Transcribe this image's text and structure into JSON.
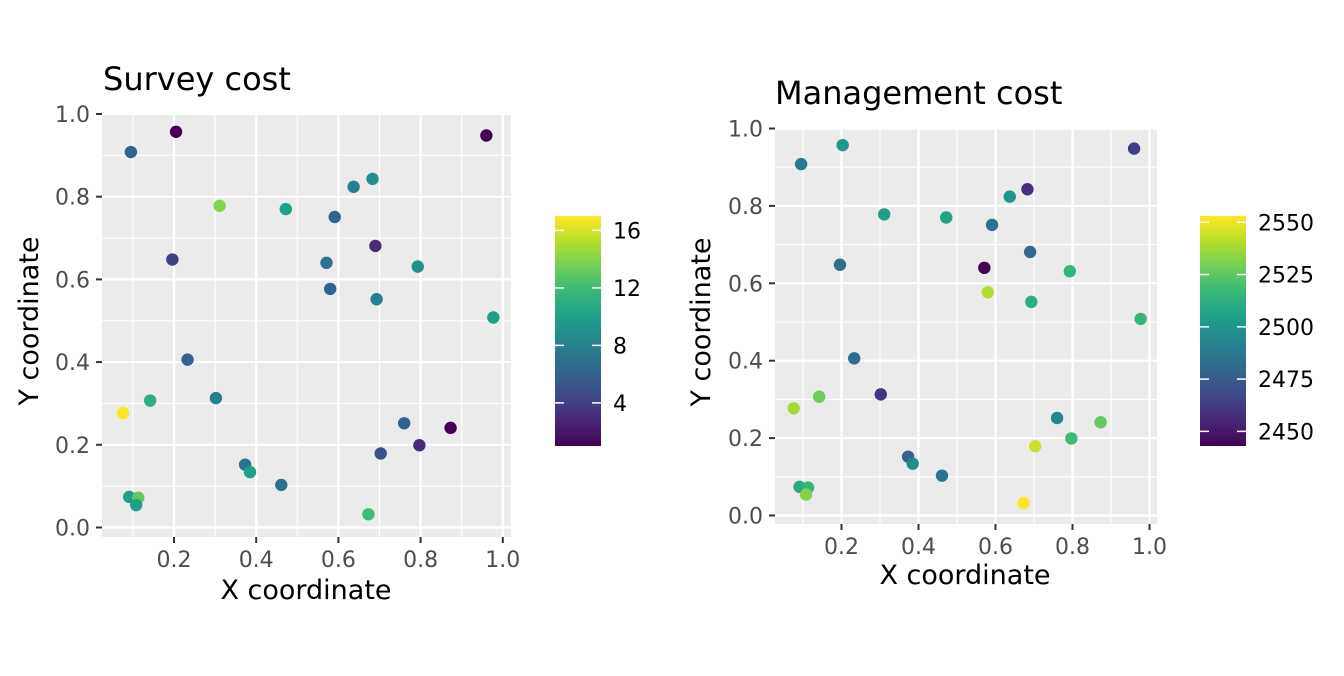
{
  "chart_data": [
    {
      "type": "scatter",
      "title": "Survey cost",
      "xlabel": "X coordinate",
      "ylabel": "Y coordinate",
      "xticks": [
        "0.2",
        "0.4",
        "0.6",
        "0.8",
        "1.0"
      ],
      "yticks": [
        "0.0",
        "0.2",
        "0.4",
        "0.6",
        "0.8",
        "1.0"
      ],
      "xlim": [
        0.07,
        0.98
      ],
      "ylim": [
        0.03,
        0.958
      ],
      "grid": true,
      "legend": {
        "position": "right",
        "ticks": [
          "4",
          "8",
          "12",
          "16"
        ],
        "range": [
          1,
          17
        ]
      },
      "points": [
        {
          "x": 0.095,
          "y": 0.908,
          "v": 6
        },
        {
          "x": 0.205,
          "y": 0.957,
          "v": 1
        },
        {
          "x": 0.96,
          "y": 0.948,
          "v": 1
        },
        {
          "x": 0.683,
          "y": 0.843,
          "v": 9
        },
        {
          "x": 0.637,
          "y": 0.824,
          "v": 8
        },
        {
          "x": 0.311,
          "y": 0.778,
          "v": 14
        },
        {
          "x": 0.472,
          "y": 0.77,
          "v": 10
        },
        {
          "x": 0.591,
          "y": 0.751,
          "v": 6
        },
        {
          "x": 0.69,
          "y": 0.681,
          "v": 3
        },
        {
          "x": 0.196,
          "y": 0.648,
          "v": 4
        },
        {
          "x": 0.571,
          "y": 0.64,
          "v": 7
        },
        {
          "x": 0.793,
          "y": 0.631,
          "v": 9
        },
        {
          "x": 0.58,
          "y": 0.577,
          "v": 6
        },
        {
          "x": 0.693,
          "y": 0.552,
          "v": 8
        },
        {
          "x": 0.977,
          "y": 0.508,
          "v": 10
        },
        {
          "x": 0.233,
          "y": 0.406,
          "v": 6
        },
        {
          "x": 0.076,
          "y": 0.277,
          "v": 17
        },
        {
          "x": 0.142,
          "y": 0.307,
          "v": 11
        },
        {
          "x": 0.302,
          "y": 0.313,
          "v": 8
        },
        {
          "x": 0.76,
          "y": 0.252,
          "v": 6
        },
        {
          "x": 0.873,
          "y": 0.241,
          "v": 1
        },
        {
          "x": 0.797,
          "y": 0.199,
          "v": 3
        },
        {
          "x": 0.703,
          "y": 0.179,
          "v": 5
        },
        {
          "x": 0.373,
          "y": 0.152,
          "v": 7
        },
        {
          "x": 0.385,
          "y": 0.134,
          "v": 10
        },
        {
          "x": 0.461,
          "y": 0.103,
          "v": 7
        },
        {
          "x": 0.091,
          "y": 0.074,
          "v": 10
        },
        {
          "x": 0.113,
          "y": 0.072,
          "v": 13
        },
        {
          "x": 0.108,
          "y": 0.054,
          "v": 10
        },
        {
          "x": 0.673,
          "y": 0.032,
          "v": 12
        }
      ]
    },
    {
      "type": "scatter",
      "title": "Management cost",
      "xlabel": "X coordinate",
      "ylabel": "Y coordinate",
      "xticks": [
        "0.2",
        "0.4",
        "0.6",
        "0.8",
        "1.0"
      ],
      "yticks": [
        "0.0",
        "0.2",
        "0.4",
        "0.6",
        "0.8",
        "1.0"
      ],
      "xlim": [
        0.07,
        0.98
      ],
      "ylim": [
        0.03,
        0.958
      ],
      "grid": true,
      "legend": {
        "position": "right",
        "ticks": [
          "2450",
          "2475",
          "2500",
          "2525",
          "2550"
        ],
        "range": [
          2443,
          2553
        ]
      },
      "points": [
        {
          "x": 0.095,
          "y": 0.908,
          "v": 2488
        },
        {
          "x": 0.203,
          "y": 0.957,
          "v": 2502
        },
        {
          "x": 0.96,
          "y": 0.948,
          "v": 2464
        },
        {
          "x": 0.683,
          "y": 0.843,
          "v": 2458
        },
        {
          "x": 0.637,
          "y": 0.824,
          "v": 2500
        },
        {
          "x": 0.311,
          "y": 0.778,
          "v": 2504
        },
        {
          "x": 0.472,
          "y": 0.77,
          "v": 2506
        },
        {
          "x": 0.591,
          "y": 0.751,
          "v": 2484
        },
        {
          "x": 0.69,
          "y": 0.681,
          "v": 2480
        },
        {
          "x": 0.196,
          "y": 0.648,
          "v": 2482
        },
        {
          "x": 0.571,
          "y": 0.64,
          "v": 2444
        },
        {
          "x": 0.793,
          "y": 0.631,
          "v": 2515
        },
        {
          "x": 0.58,
          "y": 0.577,
          "v": 2540
        },
        {
          "x": 0.693,
          "y": 0.552,
          "v": 2512
        },
        {
          "x": 0.977,
          "y": 0.508,
          "v": 2516
        },
        {
          "x": 0.233,
          "y": 0.406,
          "v": 2482
        },
        {
          "x": 0.076,
          "y": 0.277,
          "v": 2538
        },
        {
          "x": 0.142,
          "y": 0.307,
          "v": 2528
        },
        {
          "x": 0.302,
          "y": 0.313,
          "v": 2460
        },
        {
          "x": 0.76,
          "y": 0.252,
          "v": 2494
        },
        {
          "x": 0.873,
          "y": 0.241,
          "v": 2526
        },
        {
          "x": 0.797,
          "y": 0.199,
          "v": 2518
        },
        {
          "x": 0.703,
          "y": 0.179,
          "v": 2545
        },
        {
          "x": 0.373,
          "y": 0.152,
          "v": 2478
        },
        {
          "x": 0.385,
          "y": 0.134,
          "v": 2496
        },
        {
          "x": 0.461,
          "y": 0.103,
          "v": 2484
        },
        {
          "x": 0.091,
          "y": 0.074,
          "v": 2510
        },
        {
          "x": 0.113,
          "y": 0.072,
          "v": 2516
        },
        {
          "x": 0.108,
          "y": 0.054,
          "v": 2532
        },
        {
          "x": 0.673,
          "y": 0.032,
          "v": 2553
        }
      ]
    }
  ],
  "colors": {
    "panel_background": "#ebebeb",
    "grid": "#ffffff",
    "axis_text": "#4d4d4d",
    "title_text": "#000000",
    "viridis": [
      "#440154",
      "#482878",
      "#3e4a89",
      "#31688e",
      "#26828e",
      "#1f9e89",
      "#35b779",
      "#6ece58",
      "#b5de2b",
      "#fde725"
    ]
  }
}
